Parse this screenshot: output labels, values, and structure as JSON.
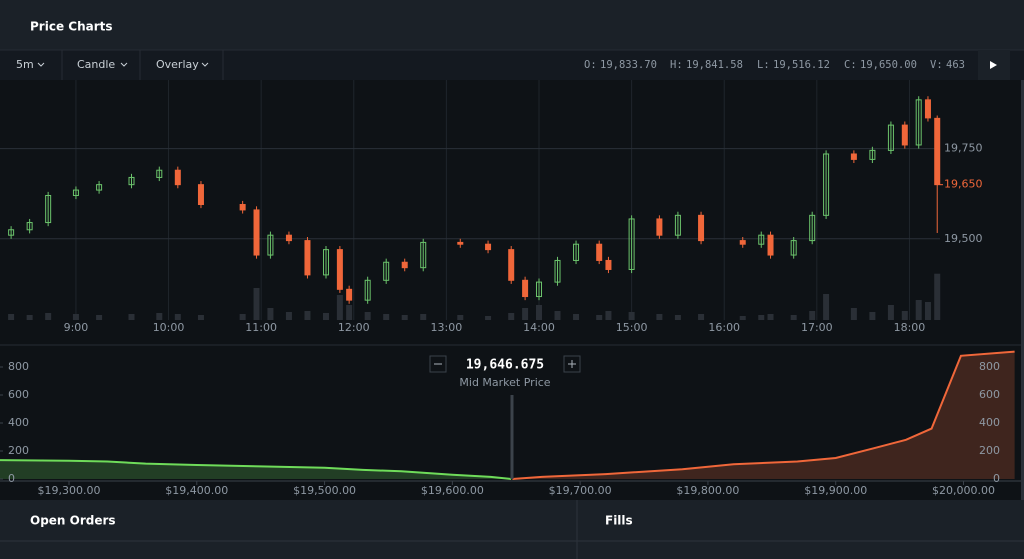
{
  "header": {
    "title": "Price Charts"
  },
  "toolbar": {
    "interval": "5m",
    "chart_type": "Candle",
    "overlay": "Overlay",
    "ohlc": [
      {
        "key": "O:",
        "value": "19,833.70"
      },
      {
        "key": "H:",
        "value": "19,841.58"
      },
      {
        "key": "L:",
        "value": "19,516.12"
      },
      {
        "key": "C:",
        "value": "19,650.00"
      },
      {
        "key": "V:",
        "value": "463"
      }
    ]
  },
  "chart_data": [
    {
      "type": "candlestick",
      "up_color": "#6cc46c",
      "down_color": "#f0673a",
      "grid": true,
      "xlim": [
        8.18,
        18.33
      ],
      "ylim": [
        19275,
        19940
      ],
      "volume_lim": [
        0,
        500
      ],
      "xticks": [
        {
          "value": 9,
          "label": "9:00"
        },
        {
          "value": 10,
          "label": "10:00"
        },
        {
          "value": 11,
          "label": "11:00"
        },
        {
          "value": 12,
          "label": "12:00"
        },
        {
          "value": 13,
          "label": "13:00"
        },
        {
          "value": 14,
          "label": "14:00"
        },
        {
          "value": 15,
          "label": "15:00"
        },
        {
          "value": 16,
          "label": "16:00"
        },
        {
          "value": 17,
          "label": "17:00"
        },
        {
          "value": 18,
          "label": "18:00"
        }
      ],
      "yticks": [
        {
          "value": 19750,
          "label": "19,750"
        },
        {
          "value": 19500,
          "label": "19,500"
        }
      ],
      "last_price": {
        "value": 19650,
        "label": "19,650"
      },
      "x": [
        8.3,
        8.5,
        8.7,
        9.0,
        9.25,
        9.6,
        9.9,
        10.1,
        10.35,
        10.8,
        10.95,
        11.1,
        11.3,
        11.5,
        11.7,
        11.85,
        11.95,
        12.15,
        12.35,
        12.55,
        12.75,
        13.15,
        13.45,
        13.7,
        13.85,
        14.0,
        14.2,
        14.4,
        14.65,
        14.75,
        15.0,
        15.3,
        15.5,
        15.75,
        16.2,
        16.4,
        16.5,
        16.75,
        16.95,
        17.1,
        17.4,
        17.6,
        17.8,
        17.95,
        18.1,
        18.2,
        18.3
      ],
      "open": [
        19510,
        19525,
        19545,
        19620,
        19635,
        19650,
        19670,
        19690,
        19650,
        19595,
        19580,
        19455,
        19510,
        19495,
        19400,
        19470,
        19360,
        19330,
        19385,
        19435,
        19420,
        19490,
        19485,
        19470,
        19385,
        19340,
        19380,
        19440,
        19485,
        19440,
        19415,
        19555,
        19510,
        19565,
        19495,
        19485,
        19510,
        19455,
        19495,
        19565,
        19735,
        19720,
        19745,
        19815,
        19760,
        19885,
        19833.7
      ],
      "high": [
        19535,
        19555,
        19630,
        19645,
        19660,
        19680,
        19700,
        19700,
        19660,
        19605,
        19590,
        19520,
        19520,
        19505,
        19480,
        19480,
        19370,
        19395,
        19445,
        19445,
        19500,
        19500,
        19495,
        19480,
        19395,
        19390,
        19450,
        19495,
        19495,
        19450,
        19565,
        19565,
        19575,
        19575,
        19505,
        19520,
        19520,
        19505,
        19575,
        19745,
        19745,
        19755,
        19825,
        19825,
        19895,
        19895,
        19841.58
      ],
      "low": [
        19500,
        19515,
        19535,
        19610,
        19625,
        19640,
        19660,
        19640,
        19585,
        19570,
        19445,
        19445,
        19485,
        19390,
        19390,
        19350,
        19320,
        19320,
        19375,
        19410,
        19410,
        19475,
        19460,
        19375,
        19330,
        19330,
        19370,
        19430,
        19430,
        19405,
        19405,
        19500,
        19500,
        19485,
        19475,
        19475,
        19445,
        19445,
        19485,
        19555,
        19710,
        19710,
        19735,
        19750,
        19750,
        19825,
        19516.12
      ],
      "close": [
        19525,
        19545,
        19620,
        19635,
        19650,
        19670,
        19690,
        19650,
        19595,
        19580,
        19455,
        19510,
        19495,
        19400,
        19470,
        19360,
        19330,
        19385,
        19435,
        19420,
        19490,
        19485,
        19470,
        19385,
        19340,
        19380,
        19440,
        19485,
        19440,
        19415,
        19555,
        19510,
        19565,
        19495,
        19485,
        19510,
        19455,
        19495,
        19565,
        19735,
        19720,
        19745,
        19815,
        19760,
        19885,
        19835,
        19650
      ],
      "volume": [
        60,
        50,
        70,
        60,
        50,
        60,
        70,
        60,
        50,
        60,
        320,
        120,
        80,
        90,
        70,
        250,
        150,
        80,
        60,
        50,
        60,
        50,
        40,
        70,
        120,
        150,
        90,
        60,
        50,
        90,
        80,
        60,
        50,
        60,
        40,
        50,
        60,
        50,
        90,
        260,
        120,
        80,
        150,
        90,
        200,
        180,
        463
      ]
    },
    {
      "type": "depth",
      "xlim": [
        19246,
        20045
      ],
      "ylim": [
        0,
        950
      ],
      "yticks": [
        800,
        600,
        400,
        200,
        0
      ],
      "xticks": [
        {
          "value": 19300,
          "label": "$19,300.00"
        },
        {
          "value": 19400,
          "label": "$19,400.00"
        },
        {
          "value": 19500,
          "label": "$19,500.00"
        },
        {
          "value": 19600,
          "label": "$19,600.00"
        },
        {
          "value": 19700,
          "label": "$19,700.00"
        },
        {
          "value": 19800,
          "label": "$19,800.00"
        },
        {
          "value": 19900,
          "label": "$19,900.00"
        },
        {
          "value": 20000,
          "label": "$20,000.00"
        }
      ],
      "mid_price": {
        "value": 19646.675,
        "label": "19,646.675"
      },
      "mid_label": "Mid Market Price",
      "bids": {
        "color": "#6fdc5a",
        "x": [
          19246,
          19300,
          19330,
          19360,
          19400,
          19450,
          19500,
          19530,
          19560,
          19600,
          19630,
          19646
        ],
        "values": [
          135,
          130,
          125,
          110,
          100,
          90,
          80,
          65,
          55,
          30,
          15,
          0
        ]
      },
      "asks": {
        "color": "#f0673a",
        "x": [
          19647,
          19670,
          19720,
          19780,
          19820,
          19870,
          19900,
          19930,
          19955,
          19975,
          19998,
          20040
        ],
        "values": [
          0,
          15,
          35,
          70,
          105,
          125,
          150,
          220,
          280,
          360,
          880,
          910
        ]
      }
    }
  ],
  "panels": {
    "open_orders": "Open Orders",
    "fills": "Fills"
  }
}
